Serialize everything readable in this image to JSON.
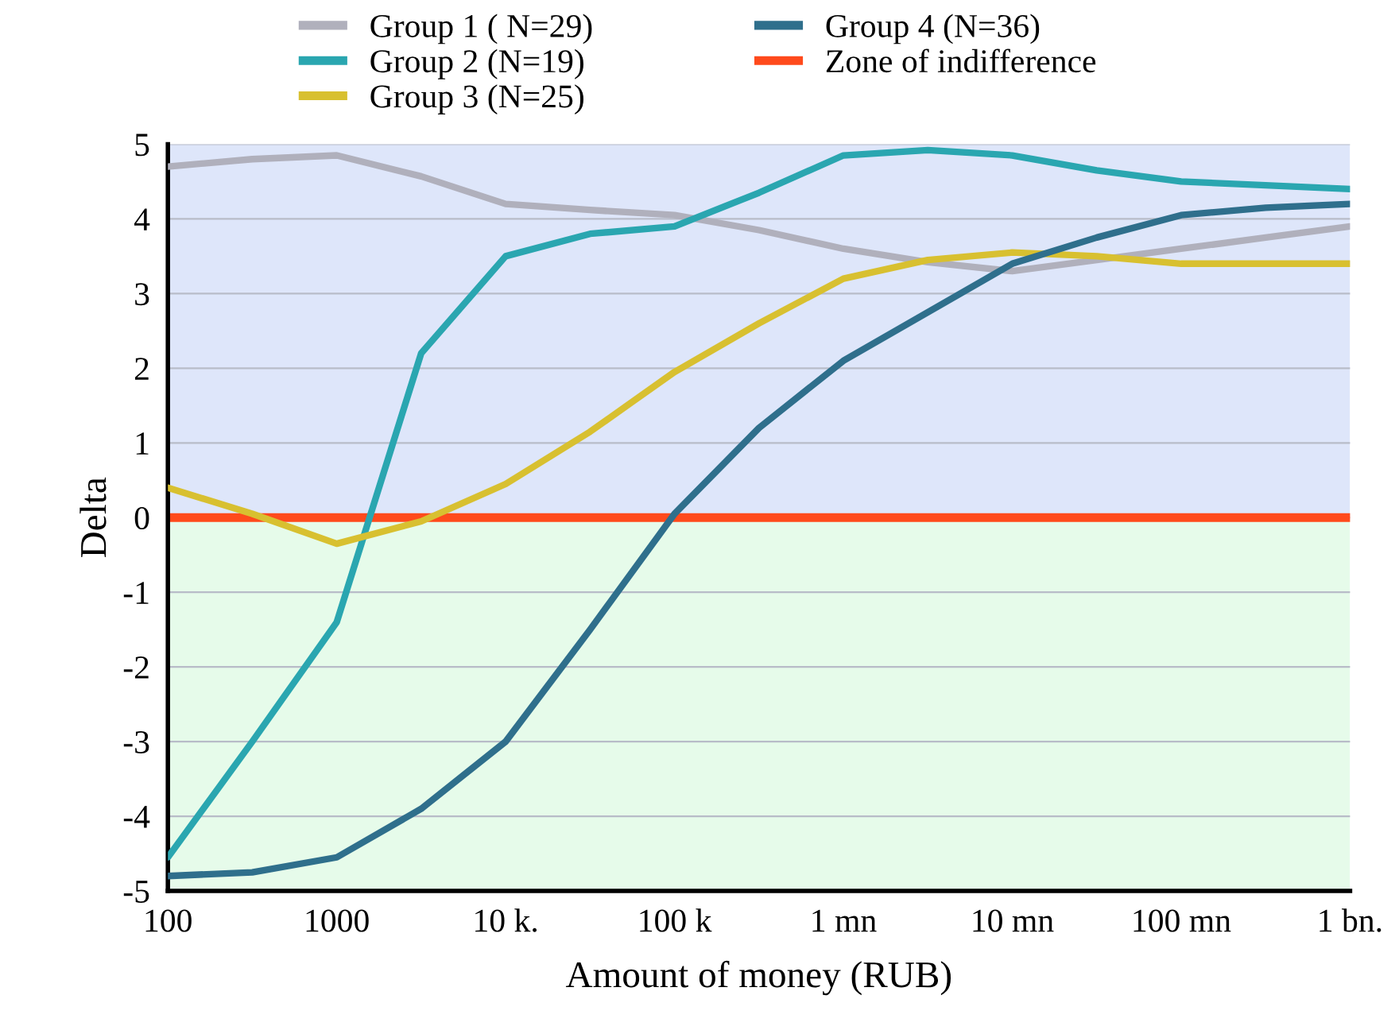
{
  "chart_data": {
    "type": "line",
    "xlabel": "Amount of money (RUB)",
    "ylabel": "Delta",
    "log": "x",
    "x": [
      100,
      316,
      1000,
      3162,
      10000,
      31623,
      100000,
      316228,
      1000000,
      3162278,
      10000000,
      31622777,
      100000000,
      316227766,
      1000000000
    ],
    "series": [
      {
        "name": "Group 1 ( N=29)",
        "color": "#b0b0bc",
        "values": [
          4.7,
          4.8,
          4.85,
          4.57,
          4.2,
          4.12,
          4.05,
          3.85,
          3.6,
          3.42,
          3.3,
          3.45,
          3.6,
          3.75,
          3.9
        ]
      },
      {
        "name": "Group 2 (N=19)",
        "color": "#2aa6b0",
        "values": [
          -4.55,
          -3.0,
          -1.4,
          2.2,
          3.5,
          3.8,
          3.9,
          4.35,
          4.85,
          4.92,
          4.85,
          4.65,
          4.5,
          4.45,
          4.4
        ]
      },
      {
        "name": "Group 3 (N=25)",
        "color": "#d8c030",
        "values": [
          0.4,
          0.05,
          -0.35,
          -0.05,
          0.45,
          1.15,
          1.95,
          2.6,
          3.2,
          3.45,
          3.55,
          3.5,
          3.4,
          3.4,
          3.4
        ]
      },
      {
        "name": "Group 4 (N=36)",
        "color": "#2f6f8c",
        "values": [
          -4.8,
          -4.75,
          -4.55,
          -3.9,
          -3.0,
          -1.5,
          0.05,
          1.2,
          2.1,
          2.75,
          3.4,
          3.75,
          4.05,
          4.15,
          4.2
        ]
      }
    ],
    "ref_lines": [
      {
        "axis": "y",
        "value": 0,
        "label": "Zone of indifference",
        "color": "#ff4a1c"
      }
    ],
    "bands": [
      {
        "axis": "y",
        "from": 0,
        "to": 5,
        "color": "#dee6fa"
      },
      {
        "axis": "y",
        "from": -5,
        "to": 0,
        "color": "#e6fbea"
      }
    ],
    "xlim": [
      100,
      1000000000
    ],
    "xticks": [
      100,
      1000,
      {
        "value": 10000,
        "label": "10 k."
      },
      {
        "value": 100000,
        "label": "100 k"
      },
      {
        "value": 1000000,
        "label": "1 mn"
      },
      {
        "value": 10000000,
        "label": "10 mn"
      },
      {
        "value": 100000000,
        "label": "100 mn"
      },
      {
        "value": 1000000000,
        "label": "1 bn."
      }
    ],
    "ylim": [
      -5,
      5
    ],
    "yticks": [
      -5,
      -4,
      -3,
      -2,
      -1,
      0,
      1,
      2,
      3,
      4,
      5
    ],
    "grid": "y",
    "legend": "top",
    "marker": "none",
    "line_style": "solid"
  }
}
